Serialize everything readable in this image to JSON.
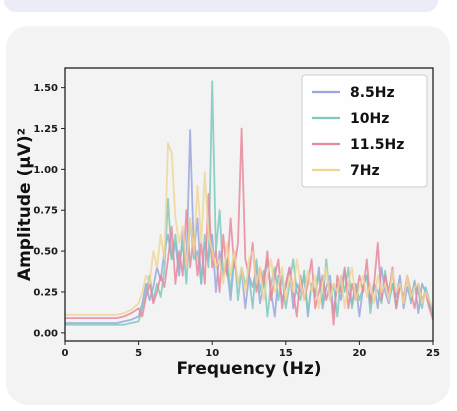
{
  "chart_data": {
    "type": "line",
    "title": "",
    "xlabel": "Frequency (Hz)",
    "ylabel": "Amplitude (µV)²",
    "xlim": [
      0,
      25
    ],
    "ylim": [
      -0.05,
      1.62
    ],
    "xticks": [
      0,
      5,
      10,
      15,
      20,
      25
    ],
    "xtick_labels": [
      "0",
      "5",
      "10",
      "15",
      "20",
      "25"
    ],
    "yticks": [
      0.0,
      0.25,
      0.5,
      0.75,
      1.0,
      1.25,
      1.5
    ],
    "ytick_labels": [
      "0.00",
      "0.25",
      "0.50",
      "0.75",
      "1.00",
      "1.25",
      "1.50"
    ],
    "grid": false,
    "legend_position": "top-right",
    "x": [
      0,
      0.5,
      1,
      1.5,
      2,
      2.5,
      3,
      3.5,
      4,
      4.5,
      5,
      5.25,
      5.5,
      5.75,
      6,
      6.25,
      6.5,
      6.75,
      7,
      7.25,
      7.5,
      7.75,
      8,
      8.25,
      8.5,
      8.75,
      9,
      9.25,
      9.5,
      9.75,
      10,
      10.25,
      10.5,
      10.75,
      11,
      11.25,
      11.5,
      11.75,
      12,
      12.25,
      12.5,
      12.75,
      13,
      13.25,
      13.5,
      13.75,
      14,
      14.25,
      14.5,
      14.75,
      15,
      15.25,
      15.5,
      15.75,
      16,
      16.25,
      16.5,
      16.75,
      17,
      17.25,
      17.5,
      17.75,
      18,
      18.25,
      18.5,
      18.75,
      19,
      19.25,
      19.5,
      19.75,
      20,
      20.25,
      20.5,
      20.75,
      21,
      21.25,
      21.5,
      21.75,
      22,
      22.25,
      22.5,
      22.75,
      23,
      23.25,
      23.5,
      23.75,
      24,
      24.25,
      24.5,
      24.75,
      25
    ],
    "series": [
      {
        "name": "8.5Hz",
        "color": "#9aa6dc",
        "values": [
          0.06,
          0.06,
          0.06,
          0.06,
          0.06,
          0.06,
          0.06,
          0.06,
          0.07,
          0.08,
          0.1,
          0.18,
          0.3,
          0.2,
          0.28,
          0.4,
          0.32,
          0.5,
          0.6,
          0.45,
          0.55,
          0.35,
          0.62,
          0.4,
          1.24,
          0.5,
          0.7,
          0.3,
          0.55,
          0.45,
          0.6,
          0.25,
          0.5,
          0.35,
          0.4,
          0.2,
          0.45,
          0.3,
          0.38,
          0.15,
          0.35,
          0.28,
          0.4,
          0.18,
          0.3,
          0.45,
          0.25,
          0.1,
          0.35,
          0.2,
          0.28,
          0.4,
          0.15,
          0.3,
          0.25,
          0.35,
          0.1,
          0.3,
          0.22,
          0.4,
          0.15,
          0.28,
          0.35,
          0.12,
          0.3,
          0.2,
          0.38,
          0.25,
          0.18,
          0.3,
          0.1,
          0.28,
          0.35,
          0.2,
          0.3,
          0.15,
          0.4,
          0.25,
          0.18,
          0.3,
          0.22,
          0.35,
          0.15,
          0.28,
          0.2,
          0.32,
          0.12,
          0.3,
          0.25,
          0.18,
          0.1
        ]
      },
      {
        "name": "10Hz",
        "color": "#7ec8bd",
        "values": [
          0.05,
          0.05,
          0.05,
          0.05,
          0.05,
          0.05,
          0.05,
          0.05,
          0.05,
          0.06,
          0.07,
          0.15,
          0.25,
          0.35,
          0.2,
          0.3,
          0.22,
          0.38,
          0.82,
          0.45,
          0.6,
          0.4,
          0.55,
          0.3,
          0.7,
          0.45,
          0.5,
          0.3,
          0.6,
          0.4,
          1.54,
          0.5,
          0.75,
          0.35,
          0.45,
          0.25,
          0.5,
          0.2,
          0.4,
          0.3,
          0.35,
          0.15,
          0.45,
          0.25,
          0.38,
          0.1,
          0.3,
          0.4,
          0.2,
          0.35,
          0.15,
          0.3,
          0.45,
          0.25,
          0.2,
          0.38,
          0.12,
          0.3,
          0.25,
          0.35,
          0.18,
          0.45,
          0.2,
          0.3,
          0.1,
          0.35,
          0.25,
          0.4,
          0.15,
          0.3,
          0.2,
          0.28,
          0.35,
          0.12,
          0.3,
          0.25,
          0.18,
          0.38,
          0.2,
          0.3,
          0.15,
          0.28,
          0.22,
          0.35,
          0.18,
          0.3,
          0.25,
          0.15,
          0.28,
          0.2,
          0.12
        ]
      },
      {
        "name": "11.5Hz",
        "color": "#e8889a",
        "values": [
          0.09,
          0.09,
          0.09,
          0.09,
          0.09,
          0.09,
          0.09,
          0.09,
          0.1,
          0.12,
          0.15,
          0.1,
          0.22,
          0.3,
          0.18,
          0.25,
          0.35,
          0.28,
          0.45,
          0.65,
          0.3,
          0.5,
          0.35,
          0.75,
          0.4,
          0.6,
          0.35,
          0.55,
          0.3,
          0.85,
          0.4,
          0.5,
          0.25,
          0.6,
          0.35,
          0.7,
          0.4,
          0.55,
          1.25,
          0.45,
          0.35,
          0.55,
          0.25,
          0.4,
          0.3,
          0.5,
          0.2,
          0.35,
          0.45,
          0.15,
          0.3,
          0.4,
          0.25,
          0.1,
          0.35,
          0.2,
          0.3,
          0.45,
          0.15,
          0.25,
          0.35,
          0.2,
          0.3,
          0.05,
          0.35,
          0.25,
          0.4,
          0.15,
          0.3,
          0.2,
          0.35,
          0.25,
          0.45,
          0.18,
          0.3,
          0.55,
          0.2,
          0.35,
          0.25,
          0.4,
          0.15,
          0.3,
          0.2,
          0.35,
          0.25,
          0.15,
          0.3,
          0.2,
          0.25,
          0.15,
          0.08
        ]
      },
      {
        "name": "7Hz",
        "color": "#efd596",
        "values": [
          0.11,
          0.11,
          0.11,
          0.11,
          0.11,
          0.11,
          0.11,
          0.11,
          0.12,
          0.14,
          0.18,
          0.25,
          0.35,
          0.3,
          0.5,
          0.4,
          0.6,
          0.45,
          1.16,
          1.1,
          0.7,
          0.55,
          0.65,
          0.4,
          0.7,
          0.5,
          0.9,
          0.55,
          0.98,
          0.6,
          0.5,
          0.4,
          0.45,
          0.3,
          0.55,
          0.35,
          0.5,
          0.3,
          0.4,
          0.25,
          0.45,
          0.5,
          0.3,
          0.4,
          0.2,
          0.35,
          0.45,
          0.25,
          0.3,
          0.4,
          0.2,
          0.35,
          0.25,
          0.45,
          0.3,
          0.2,
          0.38,
          0.25,
          0.35,
          0.15,
          0.3,
          0.4,
          0.2,
          0.3,
          0.25,
          0.35,
          0.15,
          0.3,
          0.4,
          0.2,
          0.28,
          0.35,
          0.22,
          0.3,
          0.18,
          0.35,
          0.25,
          0.3,
          0.2,
          0.38,
          0.25,
          0.3,
          0.18,
          0.35,
          0.22,
          0.28,
          0.3,
          0.18,
          0.25,
          0.2,
          0.15
        ]
      }
    ]
  }
}
